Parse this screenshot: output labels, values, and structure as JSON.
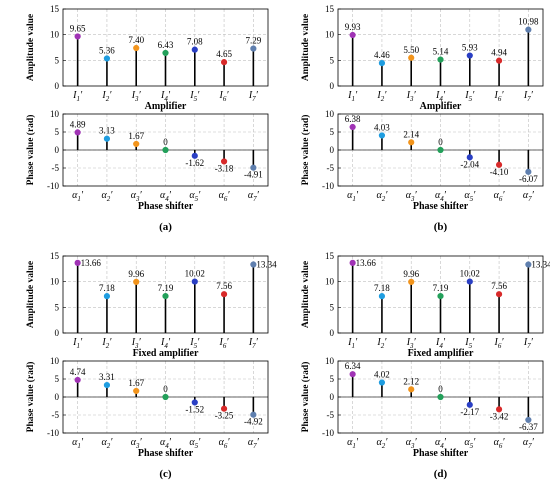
{
  "colors": [
    "#a033b5",
    "#1f9de0",
    "#f2941c",
    "#23a05a",
    "#2a3fc4",
    "#d82a2a",
    "#5f7fae"
  ],
  "chart_data": [
    {
      "type": "stem",
      "panel": "a",
      "caption": "(a)",
      "amplitude": {
        "ylabel": "Amplitude value",
        "xlabel": "Amplifier",
        "categories": [
          "I1′",
          "I2′",
          "I3′",
          "I4′",
          "I5′",
          "I6′",
          "I7′"
        ],
        "values": [
          9.65,
          5.36,
          7.4,
          6.43,
          7.08,
          4.65,
          7.29
        ],
        "labels": [
          "9.65",
          "5.36",
          "7.40",
          "6.43",
          "7.08",
          "4.65",
          "7.29"
        ],
        "ylim": [
          0,
          15
        ],
        "yticks": [
          "0",
          "5",
          "10",
          "15"
        ]
      },
      "phase": {
        "ylabel": "Phase value (rad)",
        "xlabel": "Phase shifter",
        "categories": [
          "α1′",
          "α2′",
          "α3′",
          "α4′",
          "α5′",
          "α6′",
          "α7′"
        ],
        "values": [
          4.89,
          3.13,
          1.67,
          0,
          -1.62,
          -3.18,
          -4.91
        ],
        "labels": [
          "4.89",
          "3.13",
          "1.67",
          "0",
          "-1.62",
          "-3.18",
          "-4.91"
        ],
        "ylim": [
          -10,
          10
        ],
        "yticks": [
          "-10",
          "-5",
          "0",
          "5",
          "10"
        ]
      }
    },
    {
      "type": "stem",
      "panel": "b",
      "caption": "(b)",
      "amplitude": {
        "ylabel": "Amplitude value",
        "xlabel": "Amplifier",
        "categories": [
          "I1′",
          "I2′",
          "I3′",
          "I4′",
          "I5′",
          "I6′",
          "I7′"
        ],
        "values": [
          9.93,
          4.46,
          5.5,
          5.14,
          5.93,
          4.94,
          10.98
        ],
        "labels": [
          "9.93",
          "4.46",
          "5.50",
          "5.14",
          "5.93",
          "4.94",
          "10.98"
        ],
        "ylim": [
          0,
          15
        ],
        "yticks": [
          "0",
          "5",
          "10",
          "15"
        ]
      },
      "phase": {
        "ylabel": "Phase value (rad)",
        "xlabel": "Phase shifter",
        "categories": [
          "α1′",
          "α2′",
          "α3′",
          "α4′",
          "α5′",
          "α6′",
          "α7′"
        ],
        "values": [
          6.38,
          4.03,
          2.14,
          0,
          -2.04,
          -4.1,
          -6.07
        ],
        "labels": [
          "6.38",
          "4.03",
          "2.14",
          "0",
          "-2.04",
          "-4.10",
          "-6.07"
        ],
        "ylim": [
          -10,
          10
        ],
        "yticks": [
          "-10",
          "-5",
          "0",
          "5",
          "10"
        ]
      }
    },
    {
      "type": "stem",
      "panel": "c",
      "caption": "(c)",
      "amplitude": {
        "ylabel": "Amplitude value",
        "xlabel": "Fixed amplifier",
        "categories": [
          "I1′",
          "I2′",
          "I3′",
          "I4′",
          "I5′",
          "I6′",
          "I7′"
        ],
        "values": [
          13.66,
          7.18,
          9.96,
          7.19,
          10.02,
          7.56,
          13.34
        ],
        "labels": [
          "13.66",
          "7.18",
          "9.96",
          "7.19",
          "10.02",
          "7.56",
          "13.34"
        ],
        "ylim": [
          0,
          15
        ],
        "yticks": [
          "0",
          "5",
          "10",
          "15"
        ]
      },
      "phase": {
        "ylabel": "Phase value (rad)",
        "xlabel": "Phase shifter",
        "categories": [
          "α1′",
          "α2′",
          "α3′",
          "α4′",
          "α5′",
          "α6′",
          "α7′"
        ],
        "values": [
          4.74,
          3.31,
          1.67,
          0,
          -1.52,
          -3.25,
          -4.92
        ],
        "labels": [
          "4.74",
          "3.31",
          "1.67",
          "0",
          "-1.52",
          "-3.25",
          "-4.92"
        ],
        "ylim": [
          -10,
          10
        ],
        "yticks": [
          "-10",
          "-5",
          "0",
          "5",
          "10"
        ]
      }
    },
    {
      "type": "stem",
      "panel": "d",
      "caption": "(d)",
      "amplitude": {
        "ylabel": "Amplitude value",
        "xlabel": "Fixed amplifier",
        "categories": [
          "I1′",
          "I2′",
          "I3′",
          "I4′",
          "I5′",
          "I6′",
          "I7′"
        ],
        "values": [
          13.66,
          7.18,
          9.96,
          7.19,
          10.02,
          7.56,
          13.34
        ],
        "labels": [
          "13.66",
          "7.18",
          "9.96",
          "7.19",
          "10.02",
          "7.56",
          "13.34"
        ],
        "ylim": [
          0,
          15
        ],
        "yticks": [
          "0",
          "5",
          "10",
          "15"
        ]
      },
      "phase": {
        "ylabel": "Phase value (rad)",
        "xlabel": "Phase shifter",
        "categories": [
          "α1′",
          "α2′",
          "α3′",
          "α4′",
          "α5′",
          "α6′",
          "α7′"
        ],
        "values": [
          6.34,
          4.02,
          2.12,
          0,
          -2.17,
          -3.42,
          -6.37
        ],
        "labels": [
          "6.34",
          "4.02",
          "2.12",
          "0",
          "-2.17",
          "-3.42",
          "-6.37"
        ],
        "ylim": [
          -10,
          10
        ],
        "yticks": [
          "-10",
          "-5",
          "0",
          "5",
          "10"
        ]
      }
    }
  ]
}
